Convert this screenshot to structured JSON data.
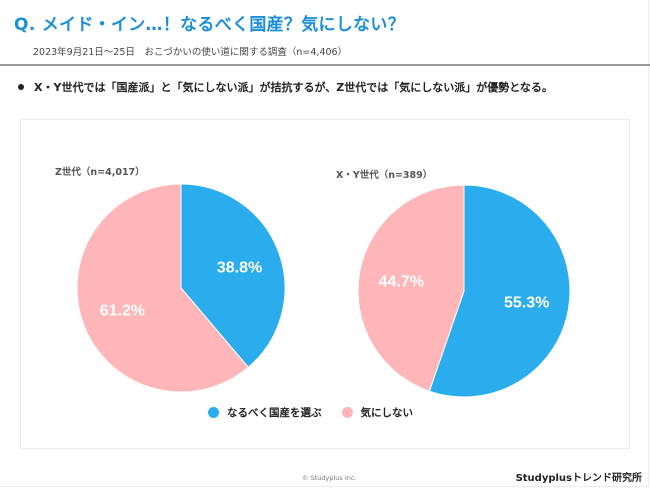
{
  "header": {
    "title": "Q. メイド・イン…！なるべく国産？気にしない？",
    "subtitle": "2023年9月21日～25日　おこづかいの使い道に関する調査（n=4,406）"
  },
  "summary": {
    "bullet": "X・Y世代では「国産派」と「気にしない派」が拮抗するが、Z世代では「気にしない派」が優勢となる。"
  },
  "colors": {
    "title": "#1a8fd8",
    "domestic": "#2bacec",
    "dont_care": "#ffb6b9"
  },
  "chart_data": [
    {
      "type": "pie",
      "title": "Z世代（n=4,017）",
      "categories": [
        "なるべく国産を選ぶ",
        "気にしない"
      ],
      "values": [
        38.8,
        61.2
      ],
      "labels": [
        "38.8%",
        "61.2%"
      ],
      "start_angle": "top",
      "direction": "clockwise",
      "legend": "bottom"
    },
    {
      "type": "pie",
      "title": "X・Y世代（n=389）",
      "categories": [
        "なるべく国産を選ぶ",
        "気にしない"
      ],
      "values": [
        55.3,
        44.7
      ],
      "labels": [
        "55.3%",
        "44.7%"
      ],
      "start_angle": "top",
      "direction": "clockwise",
      "legend": "bottom"
    }
  ],
  "legend": {
    "items": [
      {
        "label": "なるべく国産を選ぶ",
        "color": "#2bacec"
      },
      {
        "label": "気にしない",
        "color": "#ffb6b9"
      }
    ]
  },
  "footer": {
    "copyright": "© Studyplus Inc.",
    "brand": "Studyplusトレンド研究所"
  }
}
